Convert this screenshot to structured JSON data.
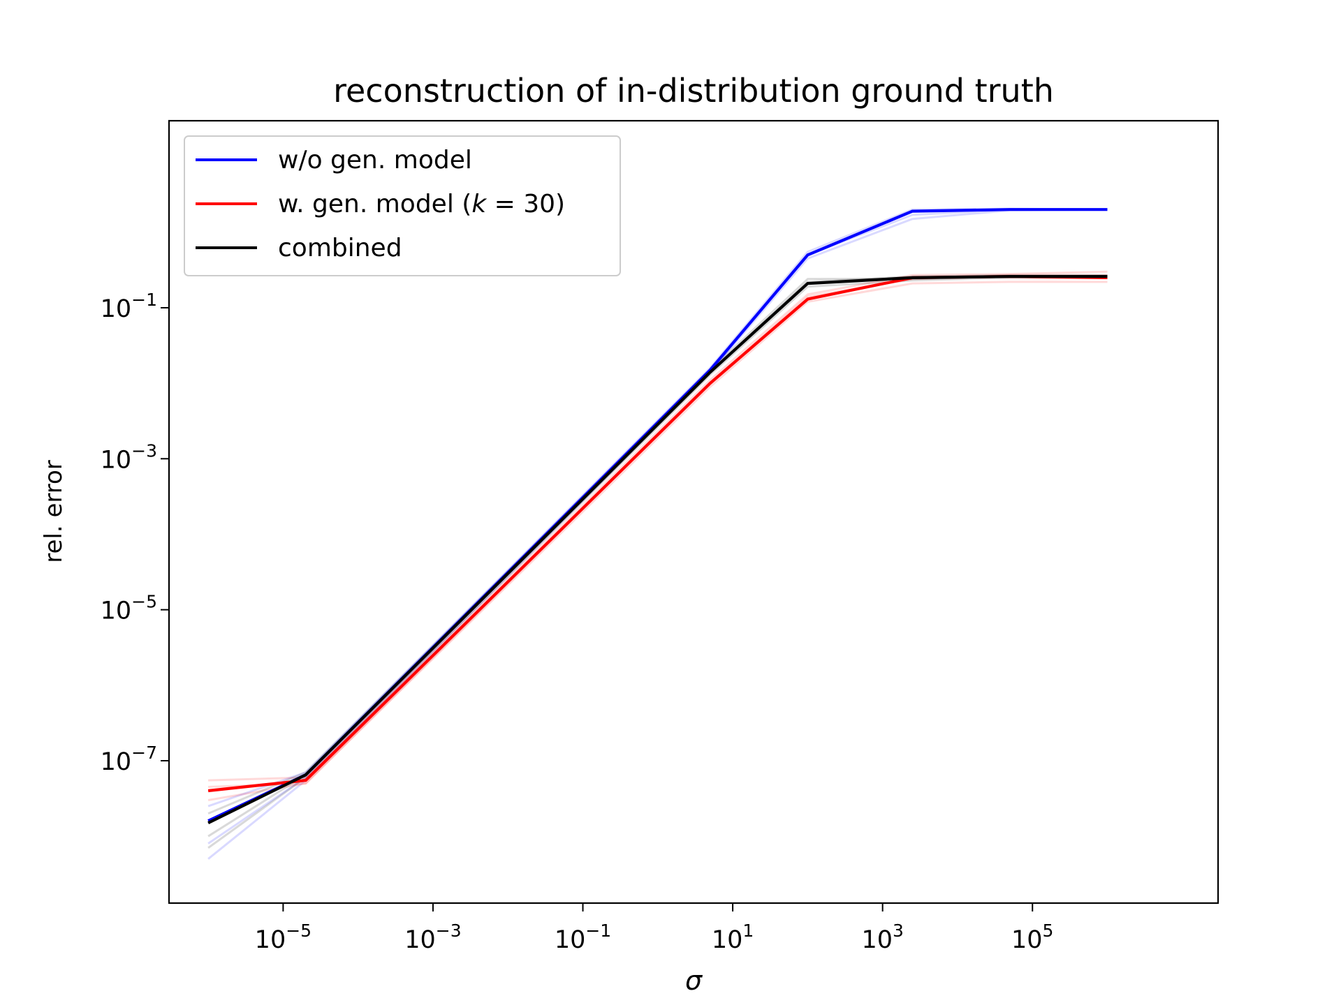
{
  "chart_data": {
    "type": "line",
    "title": "reconstruction of in-distribution ground truth",
    "xlabel": "σ",
    "ylabel": "rel. error",
    "xscale": "log",
    "yscale": "log",
    "xlim": [
      3e-07,
      30000000.0
    ],
    "ylim": [
      1.3e-09,
      30.0
    ],
    "grid": false,
    "legend_position": "upper-left",
    "x_ticks": [
      {
        "value": 1e-05,
        "base": "10",
        "exp": "−5"
      },
      {
        "value": 0.001,
        "base": "10",
        "exp": "−3"
      },
      {
        "value": 0.1,
        "base": "10",
        "exp": "−1"
      },
      {
        "value": 10.0,
        "base": "10",
        "exp": "1"
      },
      {
        "value": 1000.0,
        "base": "10",
        "exp": "3"
      },
      {
        "value": 100000.0,
        "base": "10",
        "exp": "5"
      }
    ],
    "y_ticks": [
      {
        "value": 1e-07,
        "base": "10",
        "exp": "−7"
      },
      {
        "value": 1e-05,
        "base": "10",
        "exp": "−5"
      },
      {
        "value": 0.001,
        "base": "10",
        "exp": "−3"
      },
      {
        "value": 0.1,
        "base": "10",
        "exp": "−1"
      }
    ],
    "x": [
      1e-06,
      2e-05,
      5.0,
      100.0,
      2500.0,
      50000.0,
      1000000.0
    ],
    "series": [
      {
        "name": "w/o gen. model",
        "color": "#0000ff",
        "values": [
          1.6e-08,
          6.5e-08,
          0.015,
          0.5,
          1.9,
          2.0,
          2.0
        ],
        "runs": [
          [
            5e-09,
            5.5e-08,
            0.014,
            0.45,
            1.5,
            1.95,
            2.0
          ],
          [
            8e-09,
            6e-08,
            0.015,
            0.5,
            1.7,
            2.0,
            2.0
          ],
          [
            2.5e-08,
            7e-08,
            0.016,
            0.55,
            2.0,
            2.05,
            2.0
          ]
        ]
      },
      {
        "name": "w. gen. model (k = 30)",
        "name_plain": "w. gen. model (",
        "name_var": "k",
        "name_rest": " = 30)",
        "color": "#ff0000",
        "values": [
          4e-08,
          5.5e-08,
          0.01,
          0.13,
          0.25,
          0.26,
          0.25
        ],
        "runs": [
          [
            3e-08,
            5e-08,
            0.009,
            0.12,
            0.21,
            0.22,
            0.22
          ],
          [
            5.5e-08,
            6e-08,
            0.011,
            0.15,
            0.27,
            0.28,
            0.3
          ],
          [
            4.5e-08,
            5e-08,
            0.01,
            0.14,
            0.24,
            0.27,
            0.27
          ]
        ]
      },
      {
        "name": "combined",
        "color": "#000000",
        "values": [
          1.5e-08,
          6.5e-08,
          0.014,
          0.21,
          0.25,
          0.26,
          0.26
        ],
        "runs": [
          [
            7e-09,
            6e-08,
            0.013,
            0.19,
            0.23,
            0.25,
            0.25
          ],
          [
            1e-08,
            6.5e-08,
            0.014,
            0.22,
            0.26,
            0.27,
            0.27
          ],
          [
            2e-08,
            7e-08,
            0.015,
            0.24,
            0.24,
            0.26,
            0.26
          ]
        ]
      }
    ]
  }
}
